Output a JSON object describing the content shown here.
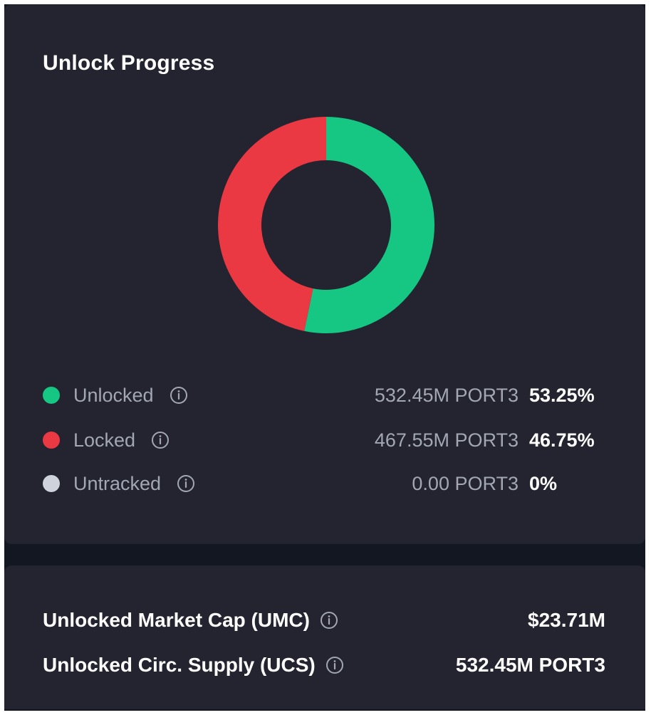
{
  "unlock_progress": {
    "title": "Unlock Progress",
    "legend": [
      {
        "label": "Unlocked",
        "amount": "532.45M PORT3",
        "percent": "53.25%",
        "color": "#16c784",
        "info_icon": "info-circle-icon"
      },
      {
        "label": "Locked",
        "amount": "467.55M PORT3",
        "percent": "46.75%",
        "color": "#ea3943",
        "info_icon": "info-circle-icon"
      },
      {
        "label": "Untracked",
        "amount": "0.00 PORT3",
        "percent": "0%",
        "color": "#cfd3dc",
        "info_icon": "info-circle-icon"
      }
    ]
  },
  "chart_data": {
    "type": "pie",
    "donut": true,
    "categories": [
      "Unlocked",
      "Locked",
      "Untracked"
    ],
    "values": [
      53.25,
      46.75,
      0
    ],
    "colors": [
      "#16c784",
      "#ea3943",
      "#cfd3dc"
    ]
  },
  "stats": [
    {
      "label": "Unlocked Market Cap (UMC)",
      "value": "$23.71M",
      "info_icon": "info-circle-icon"
    },
    {
      "label": "Unlocked Circ. Supply (UCS)",
      "value": "532.45M PORT3",
      "info_icon": "info-circle-icon"
    }
  ],
  "colors": {
    "background": "#131722",
    "card": "#23242f",
    "muted_text": "#a3a7b3",
    "text": "#ffffff"
  }
}
